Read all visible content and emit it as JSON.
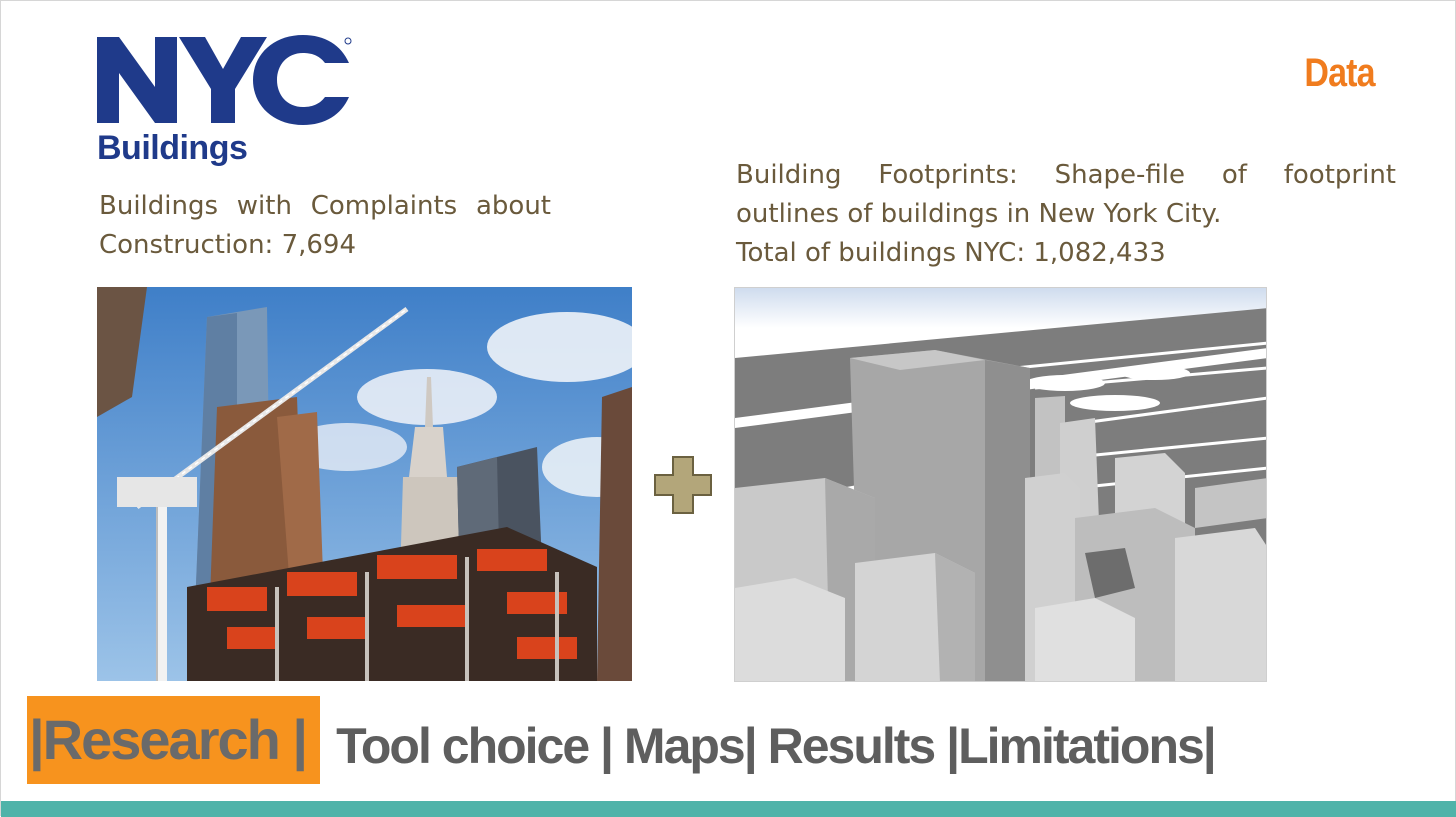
{
  "logo": {
    "brand": "NYC",
    "subtitle": "Buildings",
    "brand_color": "#1f3a8a"
  },
  "section_label": "Data",
  "left_text": "Buildings with Complaints about Construction: 7,694",
  "right_text": {
    "line1": "Building Footprints: Shape-file of footprint",
    "line2": "outlines of buildings in New York City.",
    "line3": "Total of buildings NYC: 1,082,433"
  },
  "images": {
    "left": "construction-photo",
    "right": "3d-building-footprints-render",
    "plus": "plus-icon"
  },
  "nav": {
    "active": "|Research |",
    "rest": "Tool choice | Maps| Results |Limitations|"
  },
  "colors": {
    "accent": "#f07c1e",
    "nav_highlight": "#f7931e",
    "body_text": "#6a5a3c",
    "bottom_bar": "#4fb3a9",
    "plus": "#b3a67a"
  }
}
